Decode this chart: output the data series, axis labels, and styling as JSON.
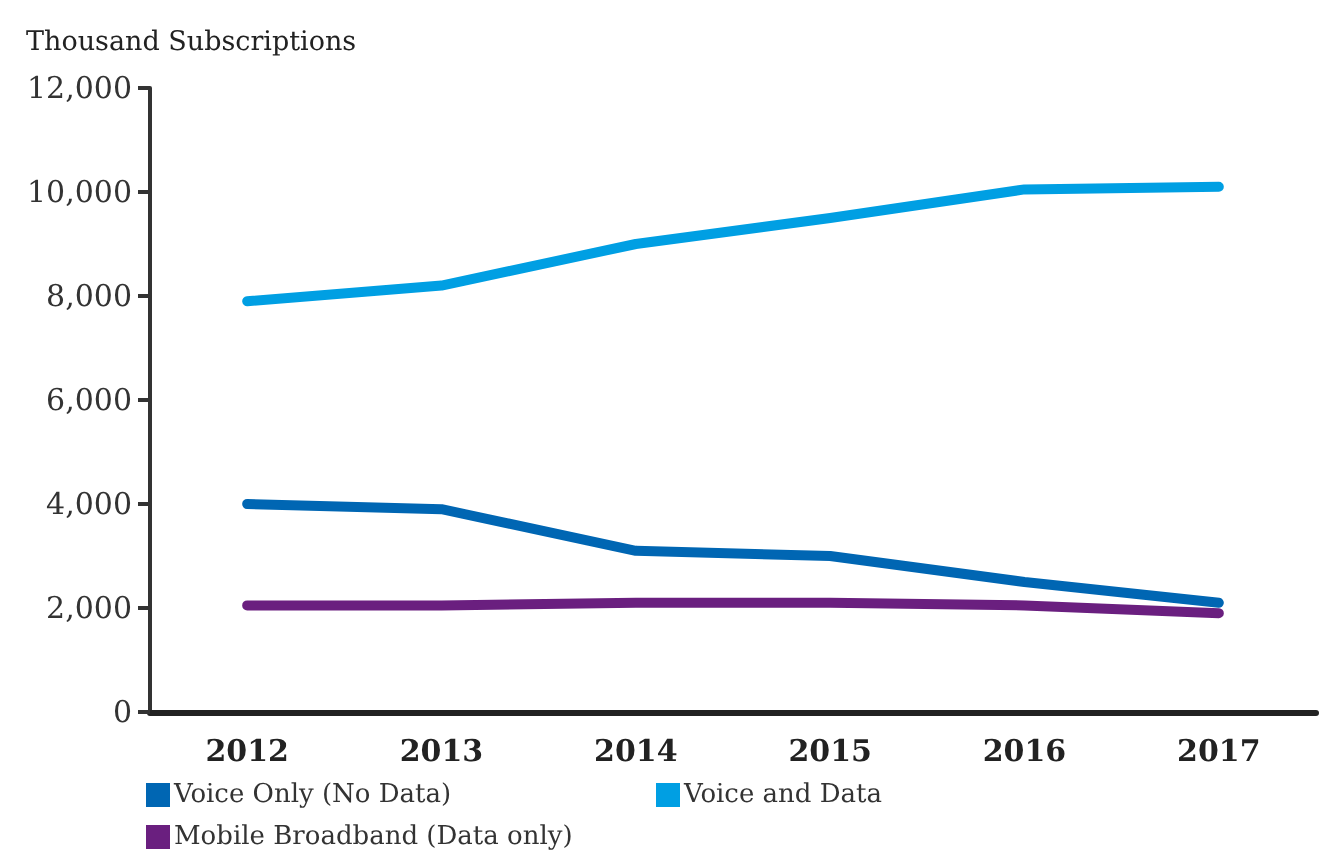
{
  "chart_data": {
    "type": "line",
    "ylabel": "Thousand Subscriptions",
    "categories": [
      "2012",
      "2013",
      "2014",
      "2015",
      "2016",
      "2017"
    ],
    "series": [
      {
        "name": "Voice Only (No Data)",
        "color": "#0066b3",
        "values": [
          4000,
          3900,
          3100,
          3000,
          2500,
          2100
        ]
      },
      {
        "name": "Voice and Data",
        "color": "#009fe3",
        "values": [
          7900,
          8200,
          9000,
          9500,
          10050,
          10100
        ]
      },
      {
        "name": "Mobile Broadband (Data only)",
        "color": "#6a1f7f",
        "values": [
          2050,
          2050,
          2100,
          2100,
          2050,
          1900
        ]
      }
    ],
    "ylim": [
      0,
      12000
    ],
    "yticks": [
      0,
      {
        "value": 2000,
        "label": "2,000"
      },
      {
        "value": 4000,
        "label": "4,000"
      },
      {
        "value": 6000,
        "label": "6,000"
      },
      {
        "value": 8000,
        "label": "8,000"
      },
      {
        "value": 10000,
        "label": "10,000"
      },
      {
        "value": 12000,
        "label": "12,000"
      }
    ],
    "grid": false,
    "legend": "bottom left",
    "marker": "none",
    "line_style": "solid"
  }
}
